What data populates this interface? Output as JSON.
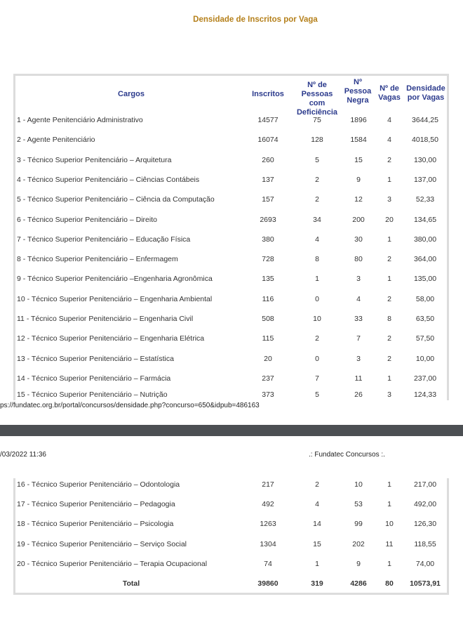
{
  "title": "Densidade de Inscritos por Vaga",
  "headers": {
    "cargos": "Cargos",
    "inscritos": "Inscritos",
    "pcd": "Nº de Pessoas com Deficiência",
    "negra": "Nº Pessoa Negra",
    "vagas": "Nº de Vagas",
    "densidade": "Densidade por Vagas"
  },
  "rows": [
    [
      "1 - Agente Penitenciário Administrativo",
      "14577",
      "75",
      "1896",
      "4",
      "3644,25"
    ],
    [
      "2 - Agente Penitenciário",
      "16074",
      "128",
      "1584",
      "4",
      "4018,50"
    ],
    [
      "3 - Técnico Superior Penitenciário – Arquitetura",
      "260",
      "5",
      "15",
      "2",
      "130,00"
    ],
    [
      "4 - Técnico Superior Penitenciário – Ciências Contábeis",
      "137",
      "2",
      "9",
      "1",
      "137,00"
    ],
    [
      "5 - Técnico Superior Penitenciário – Ciência da Computação",
      "157",
      "2",
      "12",
      "3",
      "52,33"
    ],
    [
      "6 - Técnico Superior Penitenciário – Direito",
      "2693",
      "34",
      "200",
      "20",
      "134,65"
    ],
    [
      "7 - Técnico Superior Penitenciário – Educação Física",
      "380",
      "4",
      "30",
      "1",
      "380,00"
    ],
    [
      "8 - Técnico Superior Penitenciário – Enfermagem",
      "728",
      "8",
      "80",
      "2",
      "364,00"
    ],
    [
      "9 - Técnico Superior Penitenciário –Engenharia Agronômica",
      "135",
      "1",
      "3",
      "1",
      "135,00"
    ],
    [
      "10 - Técnico Superior Penitenciário – Engenharia Ambiental",
      "116",
      "0",
      "4",
      "2",
      "58,00"
    ],
    [
      "11 - Técnico Superior Penitenciário – Engenharia Civil",
      "508",
      "10",
      "33",
      "8",
      "63,50"
    ],
    [
      "12 - Técnico Superior Penitenciário – Engenharia Elétrica",
      "115",
      "2",
      "7",
      "2",
      "57,50"
    ],
    [
      "13 - Técnico Superior Penitenciário – Estatística",
      "20",
      "0",
      "3",
      "2",
      "10,00"
    ],
    [
      "14 - Técnico Superior Penitenciário – Farmácia",
      "237",
      "7",
      "11",
      "1",
      "237,00"
    ],
    [
      "15 - Técnico Superior Penitenciário – Nutrição",
      "373",
      "5",
      "26",
      "3",
      "124,33"
    ],
    [
      "16 - Técnico Superior Penitenciário – Odontologia",
      "217",
      "2",
      "10",
      "1",
      "217,00"
    ],
    [
      "17 - Técnico Superior Penitenciário – Pedagogia",
      "492",
      "4",
      "53",
      "1",
      "492,00"
    ],
    [
      "18 - Técnico Superior Penitenciário – Psicologia",
      "1263",
      "14",
      "99",
      "10",
      "126,30"
    ],
    [
      "19 - Técnico Superior Penitenciário – Serviço Social",
      "1304",
      "15",
      "202",
      "11",
      "118,55"
    ],
    [
      "20 - Técnico Superior Penitenciário – Terapia Ocupacional",
      "74",
      "1",
      "9",
      "1",
      "74,00"
    ]
  ],
  "total": [
    "Total",
    "39860",
    "319",
    "4286",
    "80",
    "10573,91"
  ],
  "print_url": "ps://fundatec.org.br/portal/concursos/densidade.php?concurso=650&idpub=486163",
  "print_date": "/03/2022 11:36",
  "print_site": ".: Fundatec Concursos :."
}
